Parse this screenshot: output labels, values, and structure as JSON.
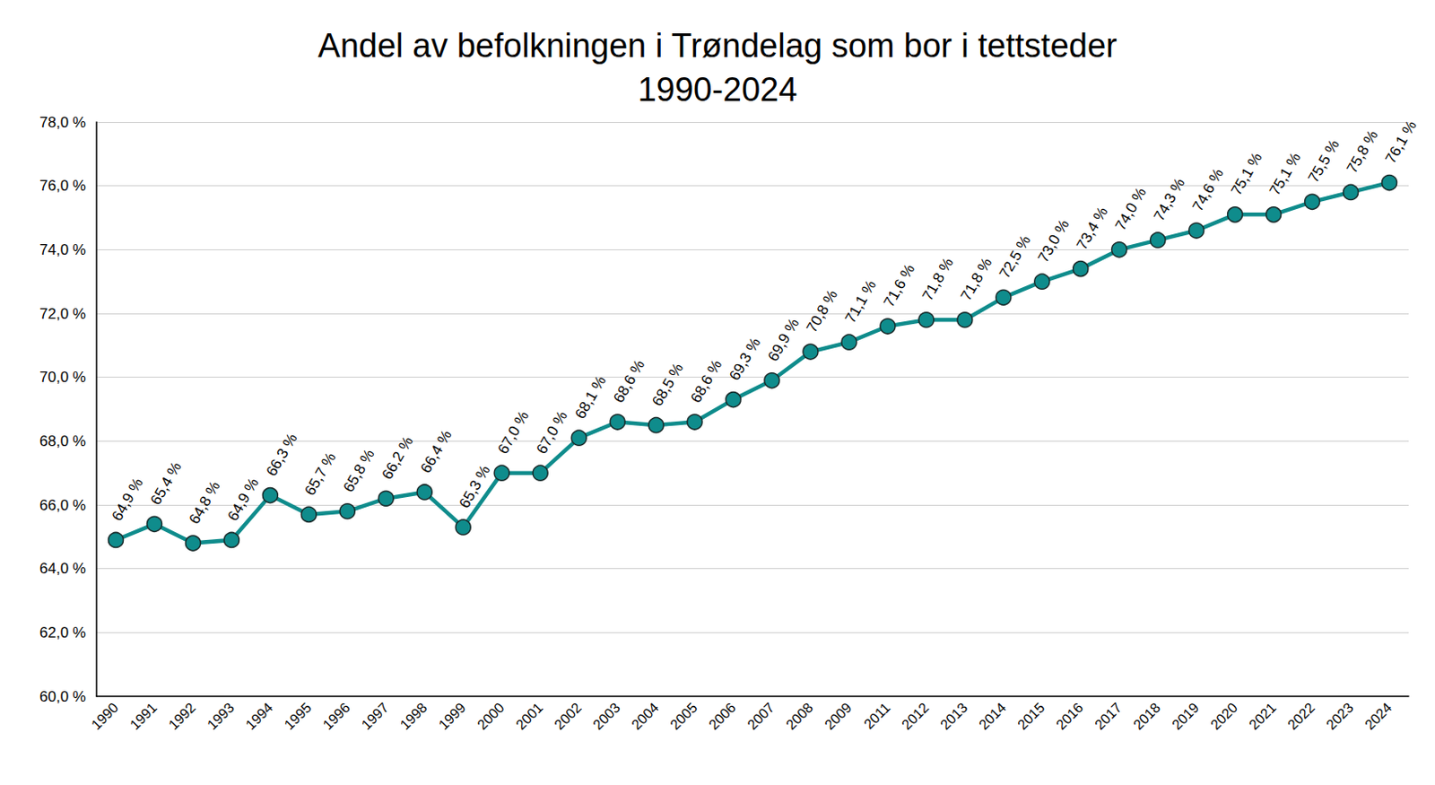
{
  "chart_data": {
    "type": "line",
    "title": "Andel av befolkningen i Trøndelag som bor i tettsteder\n1990-2024",
    "categories": [
      "1990",
      "1991",
      "1992",
      "1993",
      "1994",
      "1995",
      "1996",
      "1997",
      "1998",
      "1999",
      "2000",
      "2001",
      "2002",
      "2003",
      "2004",
      "2005",
      "2006",
      "2007",
      "2008",
      "2009",
      "2011",
      "2012",
      "2013",
      "2014",
      "2015",
      "2016",
      "2017",
      "2018",
      "2019",
      "2020",
      "2021",
      "2022",
      "2023",
      "2024"
    ],
    "values": [
      64.9,
      65.4,
      64.8,
      64.9,
      66.3,
      65.7,
      65.8,
      66.2,
      66.4,
      65.3,
      67.0,
      67.0,
      68.1,
      68.6,
      68.5,
      68.6,
      69.3,
      69.9,
      70.8,
      71.1,
      71.6,
      71.8,
      71.8,
      72.5,
      73.0,
      73.4,
      74.0,
      74.3,
      74.6,
      75.1,
      75.1,
      75.5,
      75.8,
      76.1
    ],
    "value_labels": [
      "64,9 %",
      "65,4 %",
      "64,8 %",
      "64,9 %",
      "66,3 %",
      "65,7 %",
      "65,8 %",
      "66,2 %",
      "66,4 %",
      "65,3 %",
      "67,0 %",
      "67,0 %",
      "68,1 %",
      "68,6 %",
      "68,5 %",
      "68,6 %",
      "69,3 %",
      "69,9 %",
      "70,8 %",
      "71,1 %",
      "71,6 %",
      "71,8 %",
      "71,8 %",
      "72,5 %",
      "73,0 %",
      "73,4 %",
      "74,0 %",
      "74,3 %",
      "74,6 %",
      "75,1 %",
      "75,1 %",
      "75,5 %",
      "75,8 %",
      "76,1 %"
    ],
    "color": "#0f8c8c",
    "marker": "circle",
    "line_style": "solid",
    "data_labels": true,
    "grid": true,
    "ylim": [
      60,
      78
    ],
    "yticks": [
      {
        "value": 60,
        "label": "60,0 %"
      },
      {
        "value": 62,
        "label": "62,0 %"
      },
      {
        "value": 64,
        "label": "64,0 %"
      },
      {
        "value": 66,
        "label": "66,0 %"
      },
      {
        "value": 68,
        "label": "68,0 %"
      },
      {
        "value": 70,
        "label": "70,0 %"
      },
      {
        "value": 72,
        "label": "72,0 %"
      },
      {
        "value": 74,
        "label": "74,0 %"
      },
      {
        "value": 76,
        "label": "76,0 %"
      },
      {
        "value": 78,
        "label": "78,0 %"
      }
    ]
  }
}
